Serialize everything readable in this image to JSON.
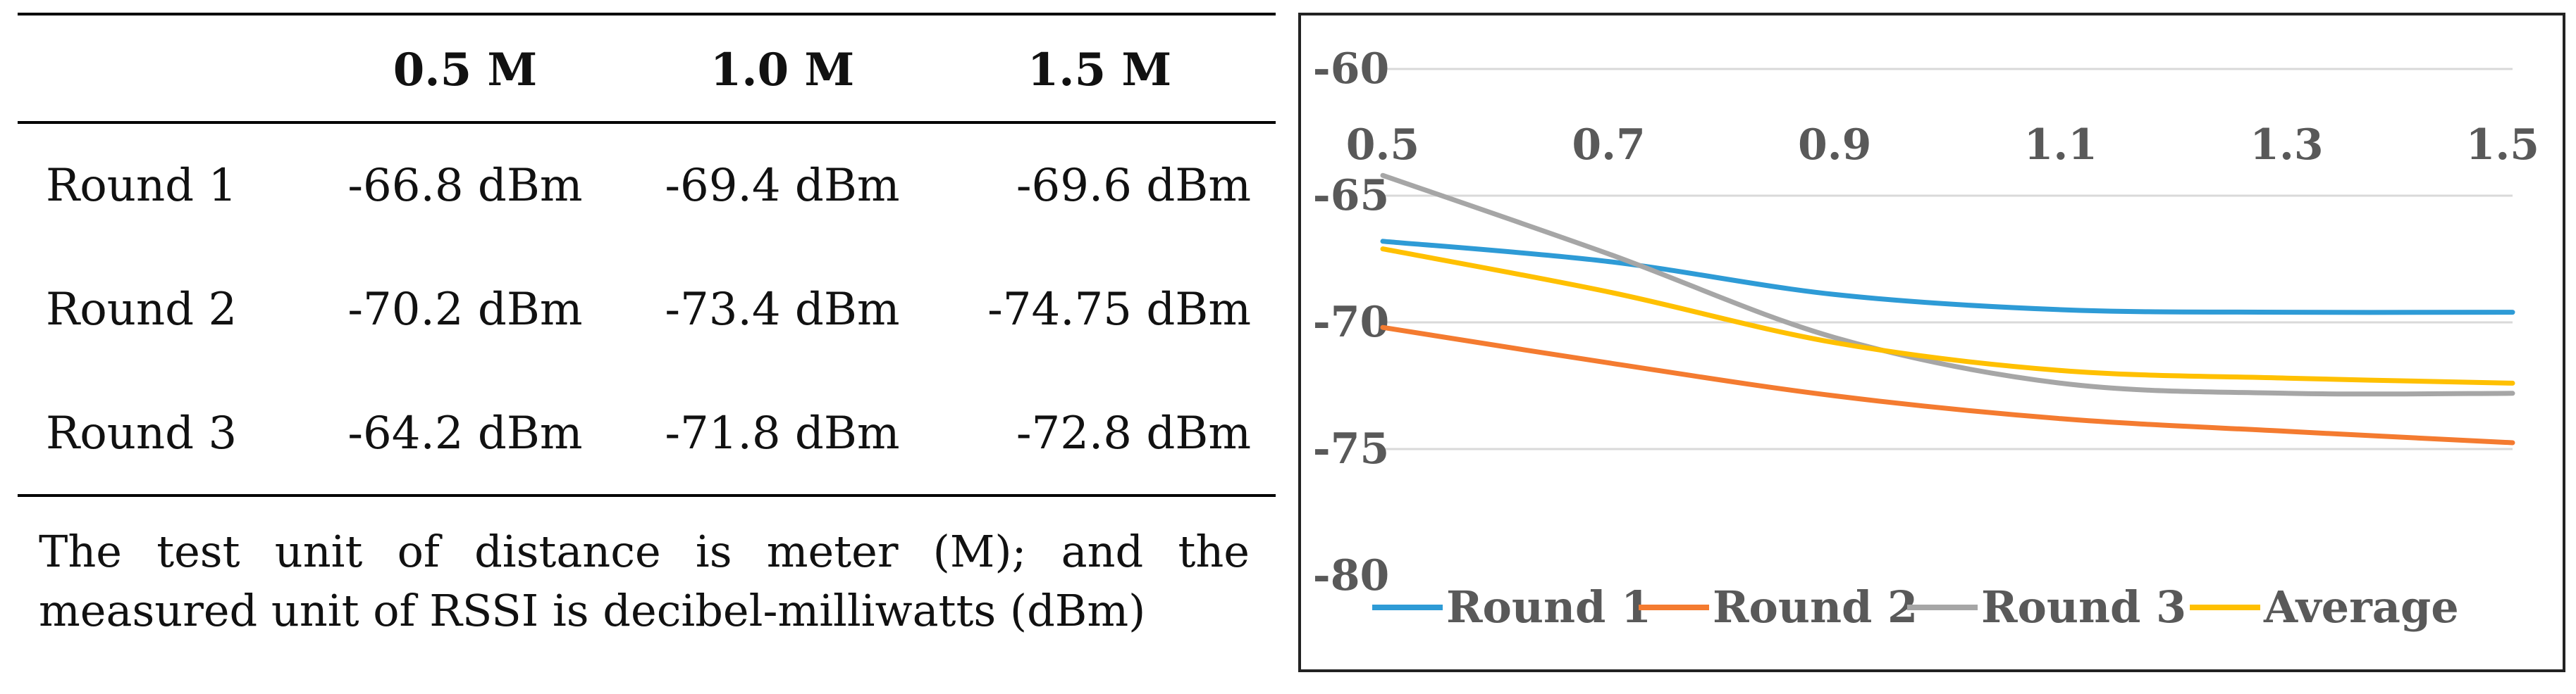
{
  "table": {
    "headers": [
      "",
      "0.5 M",
      "1.0 M",
      "1.5 M"
    ],
    "rows": [
      {
        "label": "Round 1",
        "values": [
          "-66.8 dBm",
          "-69.4 dBm",
          "-69.6 dBm"
        ]
      },
      {
        "label": "Round 2",
        "values": [
          "-70.2 dBm",
          "-73.4 dBm",
          "-74.75 dBm"
        ]
      },
      {
        "label": "Round 3",
        "values": [
          "-64.2 dBm",
          "-71.8 dBm",
          "-72.8 dBm"
        ]
      }
    ],
    "note": "The test unit of distance is meter (M); and the measured unit of RSSI is decibel-milliwatts (dBm)"
  },
  "chart_data": {
    "type": "line",
    "x": [
      0.5,
      0.7,
      0.9,
      1.1,
      1.3,
      1.5
    ],
    "x_tick_labels": [
      "0.5",
      "0.7",
      "0.9",
      "1.1",
      "1.3",
      "1.5"
    ],
    "y_tick_values": [
      -60,
      -65,
      -70,
      -75,
      -80
    ],
    "y_tick_labels": [
      "-60",
      "-65",
      "-70",
      "-75",
      "-80"
    ],
    "xlim": [
      0.5,
      1.5
    ],
    "ylim": [
      -80,
      -60
    ],
    "x_axis_position": "top",
    "grid": true,
    "legend_position": "bottom",
    "smooth": true,
    "series": [
      {
        "name": "Round 1",
        "color": "#2E9BD6",
        "values": [
          -66.8,
          -67.6,
          -68.9,
          -69.5,
          -69.6,
          -69.6
        ]
      },
      {
        "name": "Round 2",
        "color": "#F47B30",
        "values": [
          -70.2,
          -71.6,
          -72.9,
          -73.8,
          -74.3,
          -74.75
        ]
      },
      {
        "name": "Round 3",
        "color": "#A6A6A6",
        "values": [
          -64.2,
          -67.3,
          -70.6,
          -72.4,
          -72.8,
          -72.8
        ]
      },
      {
        "name": "Average",
        "color": "#FFC000",
        "values": [
          -67.1,
          -68.8,
          -70.8,
          -71.9,
          -72.2,
          -72.4
        ]
      }
    ]
  }
}
